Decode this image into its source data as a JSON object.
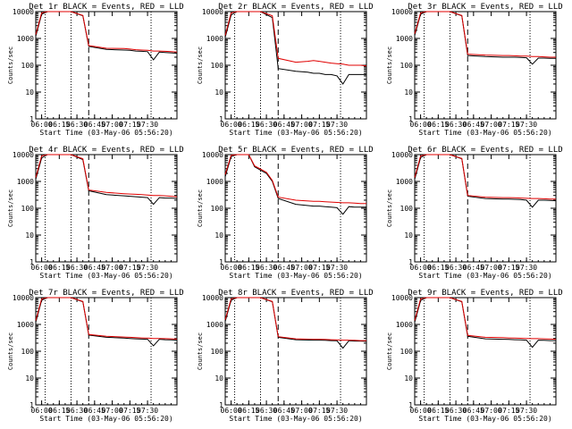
{
  "chart_data": [
    {
      "type": "line",
      "title": "Det 1r BLACK = Events, RED = LLD",
      "xlabel": "Start Time (03-May-06 05:56:20)",
      "ylabel": "Counts/sec",
      "ylim": [
        1,
        10000
      ],
      "yscale": "log",
      "x_ticks": [
        "06:00",
        "06:15",
        "06:30",
        "06:45",
        "07:00",
        "07:15",
        "07:30"
      ],
      "y_ticks": [
        "1",
        "10",
        "100",
        "1000",
        "10000"
      ],
      "series": [
        {
          "name": "Events",
          "color": "#000000",
          "x": [
            0,
            5,
            10,
            20,
            30,
            40,
            45,
            60,
            75,
            80,
            85,
            90,
            95,
            100,
            105,
            110,
            115,
            120
          ],
          "y": [
            1200,
            8000,
            10000,
            10000,
            10000,
            7000,
            500,
            390,
            370,
            360,
            340,
            330,
            320,
            160,
            310,
            300,
            290,
            280
          ]
        },
        {
          "name": "LLD",
          "color": "#e00000",
          "x": [
            0,
            5,
            10,
            20,
            30,
            40,
            45,
            60,
            75,
            80,
            85,
            90,
            95,
            100,
            105,
            110,
            115,
            120
          ],
          "y": [
            1400,
            9000,
            10000,
            10000,
            10000,
            7200,
            540,
            430,
            420,
            400,
            380,
            370,
            360,
            340,
            340,
            330,
            320,
            310
          ]
        }
      ]
    },
    {
      "type": "line",
      "title": "Det 2r BLACK = Events, RED = LLD",
      "xlabel": "Start Time (03-May-06 05:56:20)",
      "ylabel": "Counts/sec",
      "ylim": [
        1,
        10000
      ],
      "yscale": "log",
      "x_ticks": [
        "06:00",
        "06:15",
        "06:30",
        "06:45",
        "07:00",
        "07:15",
        "07:30"
      ],
      "y_ticks": [
        "1",
        "10",
        "100",
        "1000",
        "10000"
      ],
      "series": [
        {
          "name": "Events",
          "color": "#000000",
          "x": [
            0,
            5,
            10,
            20,
            30,
            40,
            45,
            60,
            70,
            75,
            80,
            85,
            90,
            95,
            100,
            105,
            110,
            115,
            120
          ],
          "y": [
            1100,
            7500,
            10000,
            10000,
            10000,
            6000,
            75,
            60,
            55,
            50,
            50,
            45,
            45,
            40,
            20,
            45,
            45,
            45,
            45
          ]
        },
        {
          "name": "LLD",
          "color": "#e00000",
          "x": [
            0,
            5,
            10,
            20,
            30,
            40,
            45,
            60,
            70,
            75,
            80,
            85,
            90,
            95,
            100,
            105,
            110,
            115,
            120
          ],
          "y": [
            1300,
            9000,
            10000,
            10000,
            10000,
            7000,
            180,
            130,
            140,
            150,
            140,
            130,
            120,
            115,
            110,
            100,
            100,
            100,
            95
          ]
        }
      ]
    },
    {
      "type": "line",
      "title": "Det 3r BLACK = Events, RED = LLD",
      "xlabel": "Start Time (03-May-06 05:56:20)",
      "ylabel": "Counts/sec",
      "ylim": [
        1,
        10000
      ],
      "yscale": "log",
      "x_ticks": [
        "06:00",
        "06:15",
        "06:30",
        "06:45",
        "07:00",
        "07:15",
        "07:30"
      ],
      "y_ticks": [
        "1",
        "10",
        "100",
        "1000",
        "10000"
      ],
      "series": [
        {
          "name": "Events",
          "color": "#000000",
          "x": [
            0,
            5,
            10,
            20,
            30,
            40,
            45,
            60,
            75,
            80,
            85,
            90,
            95,
            100,
            105,
            110,
            115,
            120
          ],
          "y": [
            1300,
            8000,
            10000,
            10000,
            10000,
            7000,
            230,
            210,
            200,
            200,
            200,
            195,
            190,
            110,
            185,
            185,
            180,
            180
          ]
        },
        {
          "name": "LLD",
          "color": "#e00000",
          "x": [
            0,
            5,
            10,
            20,
            30,
            40,
            45,
            60,
            75,
            80,
            85,
            90,
            95,
            100,
            105,
            110,
            115,
            120
          ],
          "y": [
            1500,
            9000,
            10000,
            10000,
            10000,
            7200,
            260,
            240,
            230,
            230,
            225,
            220,
            220,
            210,
            210,
            205,
            200,
            200
          ]
        }
      ]
    },
    {
      "type": "line",
      "title": "Det 4r BLACK = Events, RED = LLD",
      "xlabel": "Start Time (03-May-06 05:56:20)",
      "ylabel": "Counts/sec",
      "ylim": [
        1,
        10000
      ],
      "yscale": "log",
      "x_ticks": [
        "06:00",
        "06:15",
        "06:30",
        "06:45",
        "07:00",
        "07:15",
        "07:30"
      ],
      "y_ticks": [
        "1",
        "10",
        "100",
        "1000",
        "10000"
      ],
      "series": [
        {
          "name": "Events",
          "color": "#000000",
          "x": [
            0,
            5,
            10,
            20,
            30,
            40,
            45,
            60,
            75,
            80,
            85,
            90,
            95,
            100,
            105,
            110,
            115,
            120
          ],
          "y": [
            1200,
            7500,
            10000,
            10000,
            10000,
            6500,
            450,
            320,
            290,
            280,
            270,
            260,
            250,
            140,
            250,
            240,
            240,
            230
          ]
        },
        {
          "name": "LLD",
          "color": "#e00000",
          "x": [
            0,
            5,
            10,
            20,
            30,
            40,
            45,
            60,
            75,
            80,
            85,
            90,
            95,
            100,
            105,
            110,
            115,
            120
          ],
          "y": [
            1400,
            9000,
            10000,
            10000,
            10000,
            7000,
            480,
            390,
            350,
            340,
            330,
            320,
            310,
            300,
            300,
            290,
            280,
            270
          ]
        }
      ]
    },
    {
      "type": "line",
      "title": "Det 5r BLACK = Events, RED = LLD",
      "xlabel": "Start Time (03-May-06 05:56:20)",
      "ylabel": "Counts/sec",
      "ylim": [
        1,
        10000
      ],
      "yscale": "log",
      "x_ticks": [
        "06:00",
        "06:15",
        "06:30",
        "06:45",
        "07:00",
        "07:15",
        "07:30"
      ],
      "y_ticks": [
        "1",
        "10",
        "100",
        "1000",
        "10000"
      ],
      "series": [
        {
          "name": "Events",
          "color": "#000000",
          "x": [
            0,
            5,
            10,
            20,
            25,
            35,
            40,
            45,
            60,
            75,
            80,
            85,
            90,
            95,
            100,
            105,
            110,
            115,
            120
          ],
          "y": [
            1500,
            8500,
            10000,
            10000,
            3500,
            2000,
            1000,
            230,
            140,
            120,
            120,
            115,
            110,
            105,
            60,
            115,
            110,
            110,
            110
          ]
        },
        {
          "name": "LLD",
          "color": "#e00000",
          "x": [
            0,
            5,
            10,
            20,
            25,
            35,
            40,
            45,
            60,
            75,
            80,
            85,
            90,
            95,
            100,
            105,
            110,
            115,
            120
          ],
          "y": [
            1800,
            9500,
            10000,
            10000,
            3800,
            2200,
            1100,
            260,
            200,
            180,
            180,
            175,
            170,
            165,
            160,
            160,
            155,
            150,
            150
          ]
        }
      ]
    },
    {
      "type": "line",
      "title": "Det 6r BLACK = Events, RED = LLD",
      "xlabel": "Start Time (03-May-06 05:56:20)",
      "ylabel": "Counts/sec",
      "ylim": [
        1,
        10000
      ],
      "yscale": "log",
      "x_ticks": [
        "06:00",
        "06:15",
        "06:30",
        "06:45",
        "07:00",
        "07:15",
        "07:30"
      ],
      "y_ticks": [
        "1",
        "10",
        "100",
        "1000",
        "10000"
      ],
      "series": [
        {
          "name": "Events",
          "color": "#000000",
          "x": [
            0,
            5,
            10,
            20,
            30,
            40,
            45,
            60,
            75,
            80,
            85,
            90,
            95,
            100,
            105,
            110,
            115,
            120
          ],
          "y": [
            1200,
            7800,
            10000,
            10000,
            10000,
            7000,
            280,
            230,
            220,
            220,
            215,
            210,
            200,
            110,
            200,
            200,
            195,
            190
          ]
        },
        {
          "name": "LLD",
          "color": "#e00000",
          "x": [
            0,
            5,
            10,
            20,
            30,
            40,
            45,
            60,
            75,
            80,
            85,
            90,
            95,
            100,
            105,
            110,
            115,
            120
          ],
          "y": [
            1400,
            9000,
            10000,
            10000,
            10000,
            7200,
            300,
            260,
            250,
            250,
            245,
            240,
            235,
            230,
            230,
            225,
            220,
            220
          ]
        }
      ]
    },
    {
      "type": "line",
      "title": "Det 7r BLACK = Events, RED = LLD",
      "xlabel": "Start Time (03-May-06 05:56:20)",
      "ylabel": "Counts/sec",
      "ylim": [
        1,
        10000
      ],
      "yscale": "log",
      "x_ticks": [
        "06:00",
        "06:15",
        "06:30",
        "06:45",
        "07:00",
        "07:15",
        "07:30"
      ],
      "y_ticks": [
        "1",
        "10",
        "100",
        "1000",
        "10000"
      ],
      "series": [
        {
          "name": "Events",
          "color": "#000000",
          "x": [
            0,
            5,
            10,
            20,
            30,
            40,
            45,
            60,
            75,
            80,
            85,
            90,
            95,
            100,
            105,
            110,
            115,
            120
          ],
          "y": [
            1200,
            8000,
            10000,
            10000,
            10000,
            7000,
            400,
            330,
            310,
            300,
            290,
            285,
            280,
            160,
            280,
            270,
            265,
            260
          ]
        },
        {
          "name": "LLD",
          "color": "#e00000",
          "x": [
            0,
            5,
            10,
            20,
            30,
            40,
            45,
            60,
            75,
            80,
            85,
            90,
            95,
            100,
            105,
            110,
            115,
            120
          ],
          "y": [
            1400,
            9000,
            10000,
            10000,
            10000,
            7200,
            420,
            360,
            340,
            330,
            320,
            315,
            310,
            300,
            300,
            295,
            290,
            285
          ]
        }
      ]
    },
    {
      "type": "line",
      "title": "Det 8r BLACK = Events, RED = LLD",
      "xlabel": "Start Time (03-May-06 05:56:20)",
      "ylabel": "Counts/sec",
      "ylim": [
        1,
        10000
      ],
      "yscale": "log",
      "x_ticks": [
        "06:00",
        "06:15",
        "06:30",
        "06:45",
        "07:00",
        "07:15",
        "07:30"
      ],
      "y_ticks": [
        "1",
        "10",
        "100",
        "1000",
        "10000"
      ],
      "series": [
        {
          "name": "Events",
          "color": "#000000",
          "x": [
            0,
            5,
            10,
            20,
            30,
            40,
            45,
            60,
            75,
            80,
            85,
            90,
            95,
            100,
            105,
            110,
            115,
            120
          ],
          "y": [
            1300,
            8000,
            10000,
            10000,
            10000,
            7000,
            330,
            270,
            260,
            260,
            255,
            250,
            245,
            130,
            245,
            240,
            240,
            235
          ]
        },
        {
          "name": "LLD",
          "color": "#e00000",
          "x": [
            0,
            5,
            10,
            20,
            30,
            40,
            45,
            60,
            75,
            80,
            85,
            90,
            95,
            100,
            105,
            110,
            115,
            120
          ],
          "y": [
            1500,
            9000,
            10000,
            10000,
            10000,
            7200,
            350,
            290,
            280,
            280,
            275,
            270,
            265,
            260,
            260,
            255,
            250,
            250
          ]
        }
      ]
    },
    {
      "type": "line",
      "title": "Det 9r BLACK = Events, RED = LLD",
      "xlabel": "Start Time (03-May-06 05:56:20)",
      "ylabel": "Counts/sec",
      "ylim": [
        1,
        10000
      ],
      "yscale": "log",
      "x_ticks": [
        "06:00",
        "06:15",
        "06:30",
        "06:45",
        "07:00",
        "07:15",
        "07:30"
      ],
      "y_ticks": [
        "1",
        "10",
        "100",
        "1000",
        "10000"
      ],
      "series": [
        {
          "name": "Events",
          "color": "#000000",
          "x": [
            0,
            5,
            10,
            20,
            30,
            40,
            45,
            60,
            75,
            80,
            85,
            90,
            95,
            100,
            105,
            110,
            115,
            120
          ],
          "y": [
            1200,
            7800,
            10000,
            10000,
            10000,
            7000,
            360,
            290,
            280,
            275,
            270,
            265,
            260,
            140,
            260,
            255,
            250,
            250
          ]
        },
        {
          "name": "LLD",
          "color": "#e00000",
          "x": [
            0,
            5,
            10,
            20,
            30,
            40,
            45,
            60,
            75,
            80,
            85,
            90,
            95,
            100,
            105,
            110,
            115,
            120
          ],
          "y": [
            1400,
            9000,
            10000,
            10000,
            10000,
            7200,
            390,
            330,
            320,
            315,
            310,
            305,
            300,
            295,
            295,
            290,
            285,
            280
          ]
        }
      ]
    }
  ]
}
